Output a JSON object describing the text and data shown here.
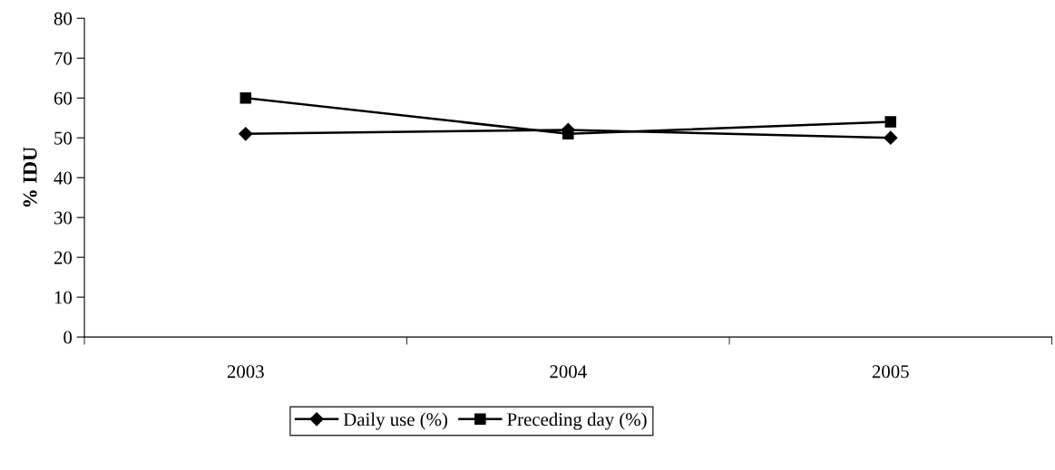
{
  "chart_data": {
    "type": "line",
    "ylabel": "% IDU",
    "categories": [
      "2003",
      "2004",
      "2005"
    ],
    "series": [
      {
        "name": "Daily use (%)",
        "color": "#000000",
        "values": [
          51,
          52,
          50
        ],
        "marker": "diamond"
      },
      {
        "name": "Preceding day (%)",
        "color": "#000000",
        "values": [
          60,
          51,
          54
        ],
        "marker": "square"
      }
    ],
    "ylim": [
      0,
      80
    ],
    "yticks": [
      0,
      10,
      20,
      30,
      40,
      50,
      60,
      70,
      80
    ],
    "grid": false,
    "legend": "bottom",
    "line_style": "solid"
  }
}
